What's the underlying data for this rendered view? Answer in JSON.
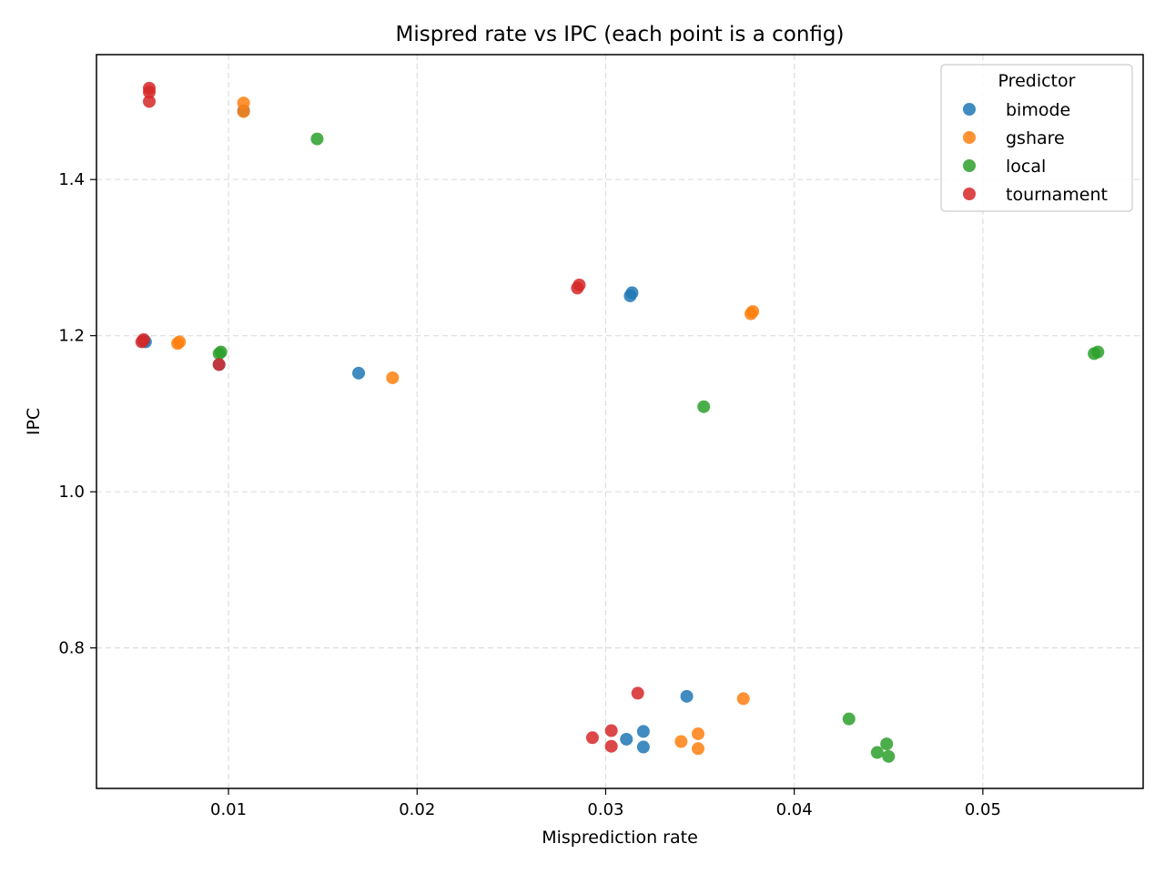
{
  "chart_data": {
    "type": "scatter",
    "title": "Mispred rate vs IPC (each point is a config)",
    "xlabel": "Misprediction rate",
    "ylabel": "IPC",
    "xlim": [
      0.003,
      0.0585
    ],
    "ylim": [
      0.62,
      1.56
    ],
    "xticks": [
      0.01,
      0.02,
      0.03,
      0.04,
      0.05
    ],
    "xtick_labels": [
      "0.01",
      "0.02",
      "0.03",
      "0.04",
      "0.05"
    ],
    "yticks": [
      0.8,
      1.0,
      1.2,
      1.4
    ],
    "ytick_labels": [
      "0.8",
      "1.0",
      "1.2",
      "1.4"
    ],
    "grid": true,
    "legend": {
      "title": "Predictor",
      "placement": "top-right"
    },
    "series": [
      {
        "name": "bimode",
        "color": "#1f77b4",
        "points": [
          [
            0.0055,
            1.193
          ],
          [
            0.0056,
            1.192
          ],
          [
            0.0095,
            1.163
          ],
          [
            0.0108,
            1.488
          ],
          [
            0.0169,
            1.152
          ],
          [
            0.0313,
            1.251
          ],
          [
            0.0314,
            1.255
          ],
          [
            0.0343,
            0.738
          ],
          [
            0.0311,
            0.683
          ],
          [
            0.032,
            0.693
          ],
          [
            0.032,
            0.673
          ]
        ]
      },
      {
        "name": "gshare",
        "color": "#ff7f0e",
        "points": [
          [
            0.0073,
            1.19
          ],
          [
            0.0074,
            1.192
          ],
          [
            0.0108,
            1.498
          ],
          [
            0.0108,
            1.487
          ],
          [
            0.0187,
            1.146
          ],
          [
            0.0377,
            1.228
          ],
          [
            0.0378,
            1.231
          ],
          [
            0.0373,
            0.735
          ],
          [
            0.0349,
            0.69
          ],
          [
            0.034,
            0.68
          ],
          [
            0.0349,
            0.671
          ]
        ]
      },
      {
        "name": "local",
        "color": "#2ca02c",
        "points": [
          [
            0.0095,
            1.177
          ],
          [
            0.0096,
            1.179
          ],
          [
            0.0147,
            1.452
          ],
          [
            0.0352,
            1.109
          ],
          [
            0.0559,
            1.177
          ],
          [
            0.0561,
            1.179
          ],
          [
            0.0429,
            0.709
          ],
          [
            0.0449,
            0.677
          ],
          [
            0.0444,
            0.666
          ],
          [
            0.045,
            0.661
          ]
        ]
      },
      {
        "name": "tournament",
        "color": "#d62728",
        "points": [
          [
            0.0055,
            1.195
          ],
          [
            0.0054,
            1.192
          ],
          [
            0.0058,
            1.517
          ],
          [
            0.0058,
            1.512
          ],
          [
            0.0058,
            1.5
          ],
          [
            0.0095,
            1.163
          ],
          [
            0.0286,
            1.265
          ],
          [
            0.0285,
            1.261
          ],
          [
            0.0317,
            0.742
          ],
          [
            0.0303,
            0.694
          ],
          [
            0.0293,
            0.685
          ],
          [
            0.0303,
            0.674
          ]
        ]
      }
    ]
  }
}
